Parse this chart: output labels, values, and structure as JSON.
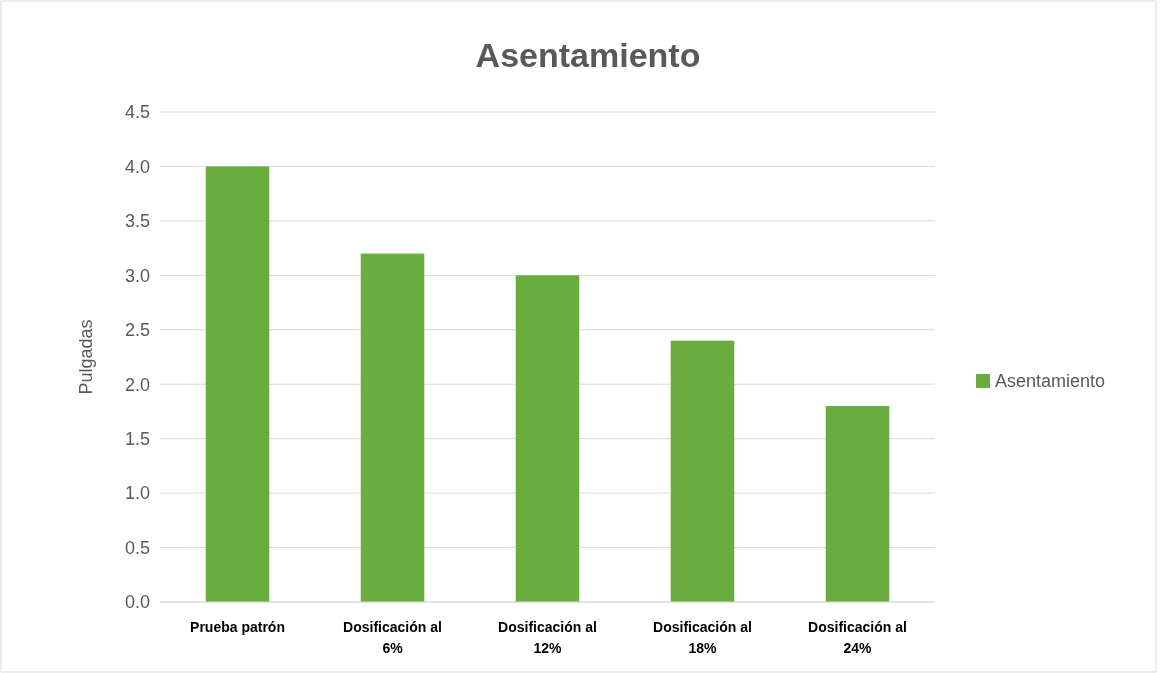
{
  "chart_data": {
    "type": "bar",
    "title": "Asentamiento",
    "ylabel": "Pulgadas",
    "categories": [
      "Prueba patrón",
      "Dosificación al 6%",
      "Dosificación al 12%",
      "Dosificación al 18%",
      "Dosificación al 24%"
    ],
    "series": [
      {
        "name": "Asentamiento",
        "color": "#6aad3f",
        "values": [
          4.0,
          3.2,
          3.0,
          2.4,
          1.8
        ]
      }
    ],
    "ylim": [
      0,
      4.5
    ],
    "yticks": [
      "0.0",
      {
        "value": 0.5,
        "label": "0.5"
      },
      {
        "value": 1,
        "label": "1.0"
      },
      {
        "value": 1.5,
        "label": "1.5"
      },
      {
        "value": 2,
        "label": "2.0"
      },
      {
        "value": 2.5,
        "label": "2.5"
      },
      {
        "value": 3,
        "label": "3.0"
      },
      {
        "value": 3.5,
        "label": "3.5"
      },
      {
        "value": 4,
        "label": "4.0"
      },
      {
        "value": 4.5,
        "label": "4.5"
      }
    ],
    "grid": "y",
    "legend": "right"
  }
}
